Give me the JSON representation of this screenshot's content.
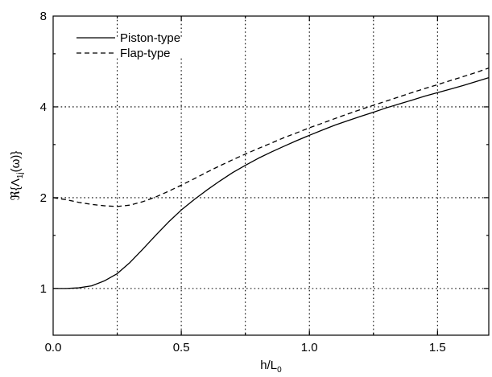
{
  "chart_data": {
    "type": "line",
    "xlabel": "h/L",
    "xlabel_sub": "0",
    "ylabel": "ℜ{Λ",
    "ylabel_sub": "1j",
    "ylabel_tail": "(ω)}",
    "xlim": [
      0.0,
      1.7
    ],
    "ylim": [
      0.7,
      8.0
    ],
    "yscale": "log2",
    "grid": true,
    "legend_position": "top-left",
    "x_ticks": [
      0.0,
      0.5,
      1.0,
      1.5
    ],
    "x_tick_labels": [
      "0.0",
      "0.5",
      "1.0",
      "1.5"
    ],
    "x_grid": [
      0.25,
      0.5,
      0.75,
      1.0,
      1.25,
      1.5
    ],
    "y_ticks": [
      1,
      2,
      4,
      8
    ],
    "y_tick_labels": [
      "1",
      "2",
      "4",
      "8"
    ],
    "series": [
      {
        "name": "Piston-type",
        "style": "solid",
        "x": [
          0.0,
          0.05,
          0.1,
          0.15,
          0.2,
          0.25,
          0.3,
          0.35,
          0.4,
          0.45,
          0.5,
          0.55,
          0.6,
          0.65,
          0.7,
          0.75,
          0.8,
          0.85,
          0.9,
          0.95,
          1.0,
          1.05,
          1.1,
          1.15,
          1.2,
          1.25,
          1.3,
          1.35,
          1.4,
          1.45,
          1.5,
          1.55,
          1.6,
          1.65,
          1.7
        ],
        "y": [
          1.0,
          1.0,
          1.005,
          1.02,
          1.06,
          1.12,
          1.22,
          1.35,
          1.5,
          1.66,
          1.82,
          1.97,
          2.12,
          2.27,
          2.42,
          2.56,
          2.7,
          2.83,
          2.96,
          3.09,
          3.22,
          3.35,
          3.48,
          3.6,
          3.72,
          3.84,
          3.97,
          4.09,
          4.21,
          4.34,
          4.46,
          4.58,
          4.71,
          4.85,
          5.0
        ]
      },
      {
        "name": "Flap-type",
        "style": "dashed",
        "x": [
          0.0,
          0.05,
          0.1,
          0.15,
          0.2,
          0.25,
          0.3,
          0.35,
          0.4,
          0.45,
          0.5,
          0.55,
          0.6,
          0.65,
          0.7,
          0.75,
          0.8,
          0.85,
          0.9,
          0.95,
          1.0,
          1.05,
          1.1,
          1.15,
          1.2,
          1.25,
          1.3,
          1.35,
          1.4,
          1.45,
          1.5,
          1.55,
          1.6,
          1.65,
          1.7
        ],
        "y": [
          2.0,
          1.97,
          1.93,
          1.9,
          1.88,
          1.87,
          1.89,
          1.94,
          2.01,
          2.1,
          2.2,
          2.31,
          2.43,
          2.55,
          2.67,
          2.79,
          2.91,
          3.03,
          3.16,
          3.28,
          3.41,
          3.53,
          3.66,
          3.79,
          3.92,
          4.05,
          4.18,
          4.32,
          4.46,
          4.6,
          4.74,
          4.89,
          5.04,
          5.2,
          5.38
        ]
      }
    ]
  }
}
